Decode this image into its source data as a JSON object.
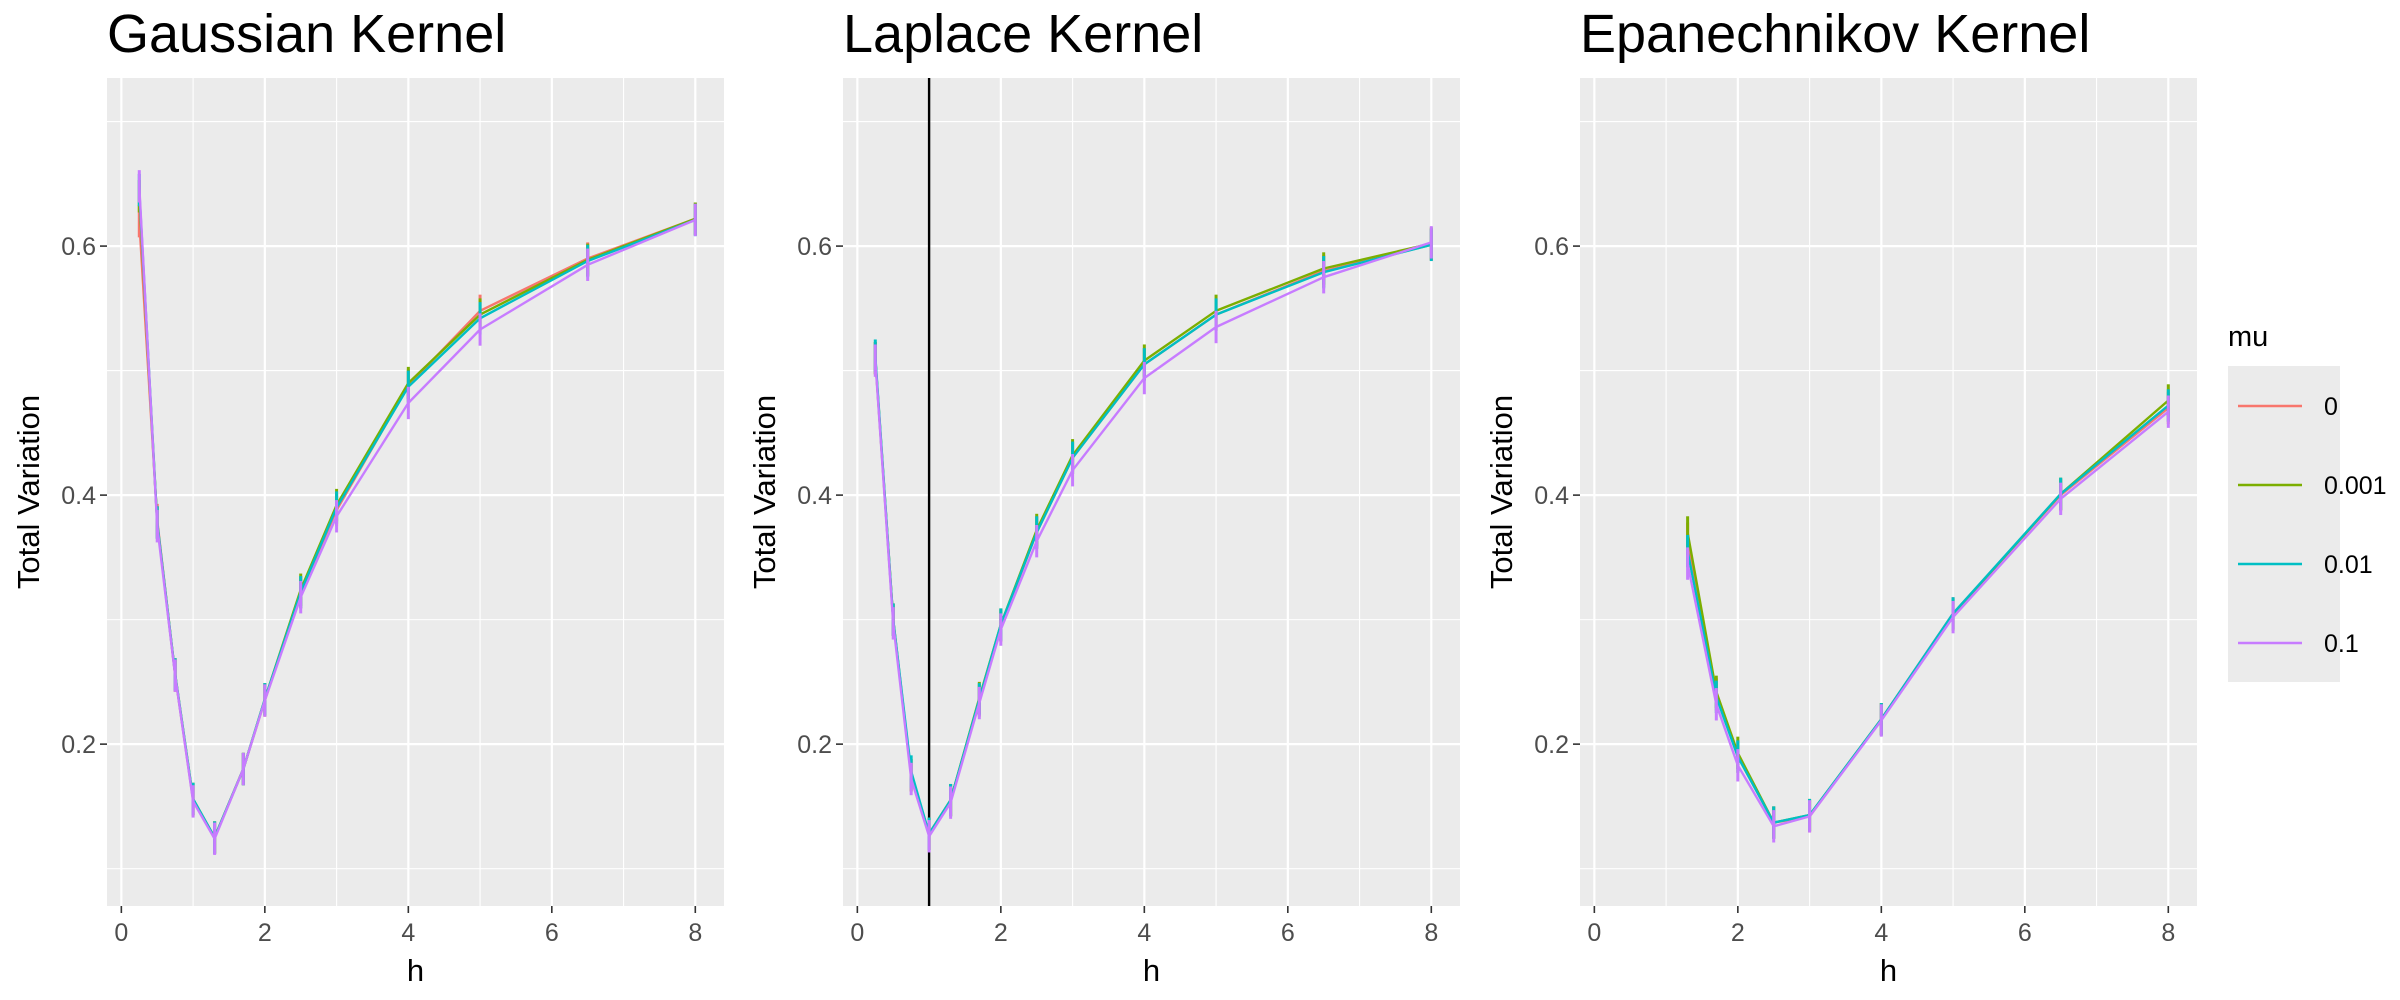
{
  "chart_data": {
    "type": "line",
    "legend": {
      "title": "mu",
      "position": "right",
      "entries": [
        {
          "label": "0",
          "color": "#F8766D"
        },
        {
          "label": "0.001",
          "color": "#7CAE00"
        },
        {
          "label": "0.01",
          "color": "#00BFC4"
        },
        {
          "label": "0.1",
          "color": "#C77CFF"
        }
      ]
    },
    "xlim": [
      -0.2,
      8.4
    ],
    "ylim": [
      0.07,
      0.735
    ],
    "xticks": [
      0,
      2,
      4,
      6,
      8
    ],
    "yticks": [
      0.2,
      0.4,
      0.6
    ],
    "xtick_labels": [
      "0",
      "2",
      "4",
      "6",
      "8"
    ],
    "ytick_labels": [
      "0.2",
      "0.4",
      "0.6"
    ],
    "grid": true,
    "panels": [
      {
        "title": "Gaussian Kernel",
        "xlabel": "h",
        "ylabel": "Total Variation",
        "x": [
          0.25,
          0.5,
          0.75,
          1,
          1.3,
          1.7,
          2,
          2.5,
          3,
          4,
          5,
          6.5,
          8
        ],
        "series": [
          {
            "name": "0",
            "values": [
              0.62,
              0.38,
              0.255,
              0.155,
              0.125,
              0.18,
              0.235,
              0.322,
              0.388,
              0.488,
              0.548,
              0.59,
              0.622
            ]
          },
          {
            "name": "0.001",
            "values": [
              0.64,
              0.378,
              0.256,
              0.156,
              0.125,
              0.18,
              0.236,
              0.324,
              0.392,
              0.49,
              0.545,
              0.589,
              0.622
            ]
          },
          {
            "name": "0.01",
            "values": [
              0.645,
              0.378,
              0.256,
              0.156,
              0.125,
              0.18,
              0.236,
              0.322,
              0.39,
              0.487,
              0.542,
              0.588,
              0.621
            ]
          },
          {
            "name": "0.1",
            "values": [
              0.648,
              0.375,
              0.255,
              0.154,
              0.124,
              0.18,
              0.235,
              0.318,
              0.383,
              0.474,
              0.533,
              0.585,
              0.621
            ]
          }
        ]
      },
      {
        "title": "Laplace Kernel",
        "xlabel": "h",
        "ylabel": "Total Variation",
        "vline": 1,
        "x": [
          0.25,
          0.5,
          0.75,
          1,
          1.3,
          1.7,
          2,
          2.5,
          3,
          4,
          5,
          6.5,
          8
        ],
        "series": [
          {
            "name": "0",
            "values": [
              0.51,
              0.3,
              0.175,
              0.128,
              0.155,
              0.235,
              0.295,
              0.37,
              0.43,
              0.505,
              0.545,
              0.58,
              0.601
            ]
          },
          {
            "name": "0.001",
            "values": [
              0.51,
              0.3,
              0.175,
              0.128,
              0.155,
              0.237,
              0.296,
              0.372,
              0.432,
              0.508,
              0.548,
              0.582,
              0.602
            ]
          },
          {
            "name": "0.01",
            "values": [
              0.512,
              0.3,
              0.178,
              0.128,
              0.155,
              0.236,
              0.296,
              0.37,
              0.43,
              0.505,
              0.545,
              0.579,
              0.601
            ]
          },
          {
            "name": "0.1",
            "values": [
              0.508,
              0.297,
              0.172,
              0.126,
              0.153,
              0.233,
              0.292,
              0.363,
              0.42,
              0.494,
              0.535,
              0.575,
              0.603
            ]
          }
        ]
      },
      {
        "title": "Epanechnikov Kernel",
        "xlabel": "h",
        "ylabel": "Total Variation",
        "x": [
          1.3,
          1.7,
          2,
          2.5,
          3,
          4,
          5,
          6.5,
          8
        ],
        "series": [
          {
            "name": "0",
            "values": [
              0.365,
              0.24,
              0.19,
              0.137,
              0.142,
              0.22,
              0.305,
              0.4,
              0.47
            ]
          },
          {
            "name": "0.001",
            "values": [
              0.37,
              0.242,
              0.193,
              0.137,
              0.143,
              0.22,
              0.304,
              0.401,
              0.476
            ]
          },
          {
            "name": "0.01",
            "values": [
              0.355,
              0.238,
              0.19,
              0.137,
              0.143,
              0.22,
              0.305,
              0.401,
              0.472
            ]
          },
          {
            "name": "0.1",
            "values": [
              0.345,
              0.232,
              0.183,
              0.134,
              0.142,
              0.219,
              0.302,
              0.397,
              0.467
            ]
          }
        ]
      }
    ]
  }
}
